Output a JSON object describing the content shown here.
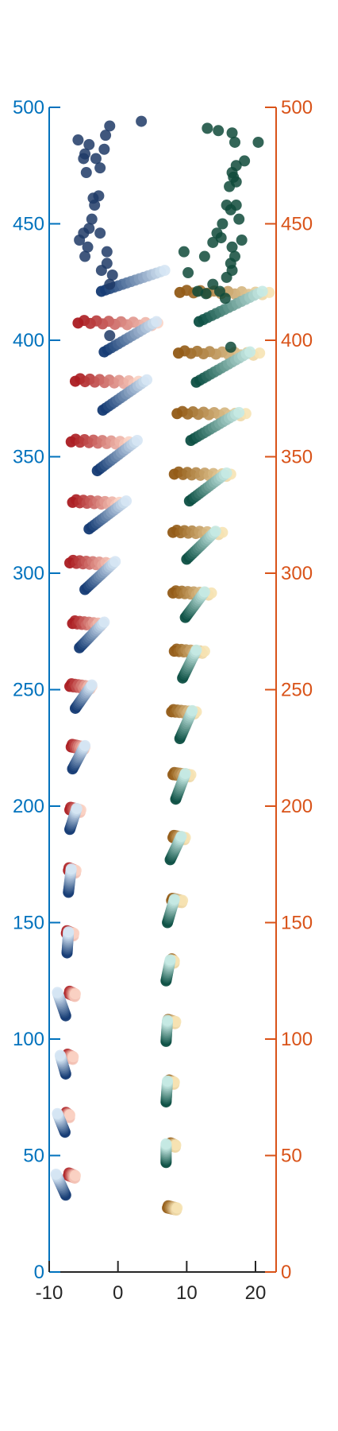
{
  "chart_data": {
    "type": "scatter",
    "title": "",
    "xlabel": "",
    "ylabel": "",
    "xlim": [
      -10,
      23
    ],
    "ylim": [
      0,
      500
    ],
    "x_ticks": [
      "-10",
      "0",
      "10",
      "20"
    ],
    "x_tick_values": [
      -10,
      0,
      10,
      20
    ],
    "y_left_ticks": [
      "0",
      "50",
      "100",
      "150",
      "200",
      "250",
      "300",
      "350",
      "400",
      "450",
      "500"
    ],
    "y_right_ticks": [
      "0",
      "50",
      "100",
      "150",
      "200",
      "250",
      "300",
      "350",
      "400",
      "450",
      "500"
    ],
    "y_tick_values": [
      0,
      50,
      100,
      150,
      200,
      250,
      300,
      350,
      400,
      450,
      500
    ],
    "left_axis_color": "#0072BD",
    "right_axis_color": "#D95319",
    "grid": false,
    "legend": "none",
    "colors": {
      "red_dark": "#a50f15",
      "red_light": "#fbd3c4",
      "blue_dark": "#08306b",
      "blue_light": "#d6e6f4",
      "orange_dark": "#8c510a",
      "orange_light": "#f6e3b4",
      "teal_dark": "#01463a",
      "teal_light": "#c7eae4",
      "blue_scatter": "#1f3a66",
      "green_scatter": "#0f4a3a"
    },
    "series": [
      {
        "group": "left-red",
        "points_y": [
          42,
          68,
          93,
          120,
          146,
          173,
          199,
          226,
          252,
          279,
          305,
          331,
          357,
          383,
          408
        ],
        "x_start": [
          -7.2,
          -7.6,
          -7.4,
          -7.1,
          -7.5,
          -7.2,
          -7.0,
          -6.8,
          -7.0,
          -6.6,
          -7.0,
          -6.6,
          -6.8,
          -6.2,
          -5.8
        ],
        "x_end": [
          -6.2,
          -7.0,
          -6.5,
          -6.2,
          -6.4,
          -6.1,
          -5.4,
          -4.8,
          -3.8,
          -2.2,
          -0.8,
          0.2,
          1.6,
          3.0,
          5.8
        ]
      },
      {
        "group": "left-blue",
        "points_y_start": [
          33,
          60,
          85,
          110,
          137,
          163,
          190,
          216,
          242,
          268,
          293,
          319,
          344,
          370,
          395,
          421
        ],
        "points_y_end": [
          42,
          68,
          93,
          120,
          146,
          173,
          199,
          226,
          252,
          279,
          305,
          331,
          357,
          383,
          408,
          430
        ],
        "x_start": [
          -7.6,
          -7.7,
          -7.6,
          -7.6,
          -7.4,
          -7.2,
          -7.0,
          -6.6,
          -6.2,
          -5.6,
          -4.8,
          -4.2,
          -3.0,
          -2.2,
          -2.0,
          -2.4
        ],
        "x_end": [
          -9.0,
          -8.8,
          -8.4,
          -8.8,
          -7.2,
          -6.8,
          -6.0,
          -4.8,
          -3.8,
          -2.0,
          -0.4,
          1.2,
          2.8,
          4.2,
          5.6,
          6.8
        ]
      },
      {
        "group": "right-orange",
        "points_y": [
          28,
          55,
          82,
          108,
          134,
          160,
          187,
          214,
          241,
          267,
          292,
          318,
          343,
          369,
          395,
          421
        ],
        "x_start": [
          7.2,
          7.6,
          7.4,
          7.2,
          7.8,
          7.8,
          8.0,
          8.0,
          7.8,
          8.2,
          8.0,
          8.0,
          8.2,
          8.6,
          8.8,
          9.0
        ],
        "x_end": [
          8.6,
          8.4,
          8.2,
          8.4,
          8.2,
          9.4,
          9.8,
          10.6,
          11.4,
          12.6,
          13.6,
          15.2,
          16.4,
          18.6,
          20.6,
          22.0
        ]
      },
      {
        "group": "right-teal",
        "points_y_start": [
          47,
          73,
          99,
          125,
          150,
          177,
          203,
          229,
          255,
          281,
          306,
          331,
          357,
          382,
          408
        ],
        "points_y_end": [
          55,
          82,
          108,
          134,
          160,
          187,
          214,
          241,
          267,
          292,
          318,
          343,
          369,
          395,
          421
        ],
        "x_start": [
          7.0,
          7.0,
          7.0,
          7.0,
          7.2,
          7.6,
          8.4,
          9.0,
          9.4,
          9.8,
          10.0,
          10.4,
          10.6,
          11.4,
          11.8
        ],
        "x_end": [
          7.0,
          7.2,
          7.2,
          7.6,
          8.2,
          9.2,
          9.8,
          10.8,
          11.4,
          12.6,
          14.2,
          15.8,
          17.6,
          19.2,
          21.0
        ]
      }
    ],
    "scatter_blue": [
      [
        -5.8,
        486
      ],
      [
        -4.8,
        480
      ],
      [
        -3.2,
        478
      ],
      [
        -2.0,
        482
      ],
      [
        -1.2,
        492
      ],
      [
        -1.8,
        488
      ],
      [
        -4.2,
        484
      ],
      [
        -2.6,
        474
      ],
      [
        -4.6,
        472
      ],
      [
        -5.0,
        478
      ],
      [
        -2.8,
        462
      ],
      [
        -3.4,
        458
      ],
      [
        -3.8,
        452
      ],
      [
        -4.4,
        440
      ],
      [
        -5.0,
        446
      ],
      [
        -4.8,
        436
      ],
      [
        -2.6,
        446
      ],
      [
        -1.6,
        438
      ],
      [
        -2.4,
        430
      ],
      [
        -1.2,
        424
      ],
      [
        3.4,
        494
      ],
      [
        -1.6,
        433
      ],
      [
        -0.8,
        428
      ],
      [
        -5.6,
        443
      ],
      [
        -1.2,
        402
      ],
      [
        -3.6,
        461
      ],
      [
        -4.2,
        448
      ]
    ],
    "scatter_green": [
      [
        13.0,
        491
      ],
      [
        14.6,
        490
      ],
      [
        16.6,
        489
      ],
      [
        17.0,
        485
      ],
      [
        18.4,
        477
      ],
      [
        20.4,
        485
      ],
      [
        17.2,
        475
      ],
      [
        16.6,
        472
      ],
      [
        16.8,
        470
      ],
      [
        16.2,
        466
      ],
      [
        17.2,
        468
      ],
      [
        15.8,
        458
      ],
      [
        16.4,
        456
      ],
      [
        17.2,
        458
      ],
      [
        15.2,
        450
      ],
      [
        14.4,
        446
      ],
      [
        13.8,
        442
      ],
      [
        17.6,
        452
      ],
      [
        18.0,
        443
      ],
      [
        16.6,
        440
      ],
      [
        15.0,
        444
      ],
      [
        17.0,
        436
      ],
      [
        16.4,
        433
      ],
      [
        16.6,
        430
      ],
      [
        15.8,
        427
      ],
      [
        14.8,
        421
      ],
      [
        11.6,
        421
      ],
      [
        12.8,
        420
      ],
      [
        16.4,
        397
      ],
      [
        12.6,
        436
      ],
      [
        9.6,
        438
      ],
      [
        10.2,
        429
      ],
      [
        13.8,
        424
      ],
      [
        15.6,
        418
      ]
    ]
  }
}
